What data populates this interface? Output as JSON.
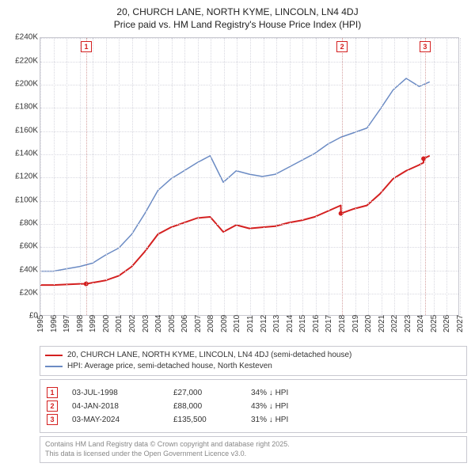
{
  "title": {
    "line1": "20, CHURCH LANE, NORTH KYME, LINCOLN, LN4 4DJ",
    "line2": "Price paid vs. HM Land Registry's House Price Index (HPI)",
    "fontsize": 12,
    "color": "#222222"
  },
  "chart": {
    "type": "line",
    "background_color": "#ffffff",
    "grid_color": "#d8d8e0",
    "border_color": "#c8c8d0",
    "xlim": [
      1995,
      2027
    ],
    "ylim": [
      0,
      240000
    ],
    "ytick_step": 20000,
    "yticks": [
      "£0",
      "£20K",
      "£40K",
      "£60K",
      "£80K",
      "£100K",
      "£120K",
      "£140K",
      "£160K",
      "£180K",
      "£200K",
      "£220K",
      "£240K"
    ],
    "xticks": [
      1995,
      1996,
      1997,
      1998,
      1999,
      2000,
      2001,
      2002,
      2003,
      2004,
      2005,
      2006,
      2007,
      2008,
      2009,
      2010,
      2011,
      2012,
      2013,
      2014,
      2015,
      2016,
      2017,
      2018,
      2019,
      2020,
      2021,
      2022,
      2023,
      2024,
      2025,
      2026,
      2027
    ],
    "series": [
      {
        "name": "price_paid",
        "label": "20, CHURCH LANE, NORTH KYME, LINCOLN, LN4 4DJ (semi-detached house)",
        "color": "#d42020",
        "line_width": 2,
        "x": [
          1995,
          1996,
          1997,
          1998,
          1998.5,
          1999,
          2000,
          2001,
          2002,
          2003,
          2004,
          2005,
          2006,
          2007,
          2008,
          2009,
          2010,
          2011,
          2012,
          2013,
          2014,
          2015,
          2016,
          2017,
          2018,
          2018.01,
          2019,
          2020,
          2021,
          2022,
          2023,
          2024,
          2024.33,
          2024.34,
          2024.8
        ],
        "y": [
          26000,
          26000,
          26500,
          27000,
          27000,
          28000,
          30000,
          34000,
          42000,
          55000,
          70000,
          76000,
          80000,
          84000,
          85000,
          72000,
          78000,
          75000,
          76000,
          77000,
          80000,
          82000,
          85000,
          90000,
          95000,
          88000,
          92000,
          95000,
          105000,
          118000,
          125000,
          130000,
          132000,
          135500,
          138000
        ]
      },
      {
        "name": "hpi",
        "label": "HPI: Average price, semi-detached house, North Kesteven",
        "color": "#6b8bc4",
        "line_width": 1.5,
        "x": [
          1995,
          1996,
          1997,
          1998,
          1999,
          2000,
          2001,
          2002,
          2003,
          2004,
          2005,
          2006,
          2007,
          2008,
          2009,
          2010,
          2011,
          2012,
          2013,
          2014,
          2015,
          2016,
          2017,
          2018,
          2019,
          2020,
          2021,
          2022,
          2023,
          2024,
          2024.8
        ],
        "y": [
          38000,
          38000,
          40000,
          42000,
          45000,
          52000,
          58000,
          70000,
          88000,
          108000,
          118000,
          125000,
          132000,
          138000,
          115000,
          125000,
          122000,
          120000,
          122000,
          128000,
          134000,
          140000,
          148000,
          154000,
          158000,
          162000,
          178000,
          195000,
          205000,
          198000,
          202000
        ]
      }
    ],
    "markers": [
      {
        "id": "1",
        "x": 1998.5,
        "y_top": 8000
      },
      {
        "id": "2",
        "x": 2018.01,
        "y_top": 8000
      },
      {
        "id": "3",
        "x": 2024.34,
        "y_top": 8000
      }
    ],
    "marker_box_color": "#d42020",
    "marker_line_color": "#d4a0a0"
  },
  "legend": {
    "border_color": "#c8c8d0",
    "fontsize": 10,
    "items": [
      {
        "color": "#d42020",
        "label": "20, CHURCH LANE, NORTH KYME, LINCOLN, LN4 4DJ (semi-detached house)"
      },
      {
        "color": "#6b8bc4",
        "label": "HPI: Average price, semi-detached house, North Kesteven"
      }
    ]
  },
  "sales": {
    "border_color": "#c8c8d0",
    "fontsize": 10,
    "arrow": "↓",
    "rows": [
      {
        "id": "1",
        "date": "03-JUL-1998",
        "price": "£27,000",
        "pct": "34% ↓ HPI"
      },
      {
        "id": "2",
        "date": "04-JAN-2018",
        "price": "£88,000",
        "pct": "43% ↓ HPI"
      },
      {
        "id": "3",
        "date": "03-MAY-2024",
        "price": "£135,500",
        "pct": "31% ↓ HPI"
      }
    ]
  },
  "footer": {
    "line1": "Contains HM Land Registry data © Crown copyright and database right 2025.",
    "line2": "This data is licensed under the Open Government Licence v3.0.",
    "color": "#888888",
    "fontsize": 9
  }
}
